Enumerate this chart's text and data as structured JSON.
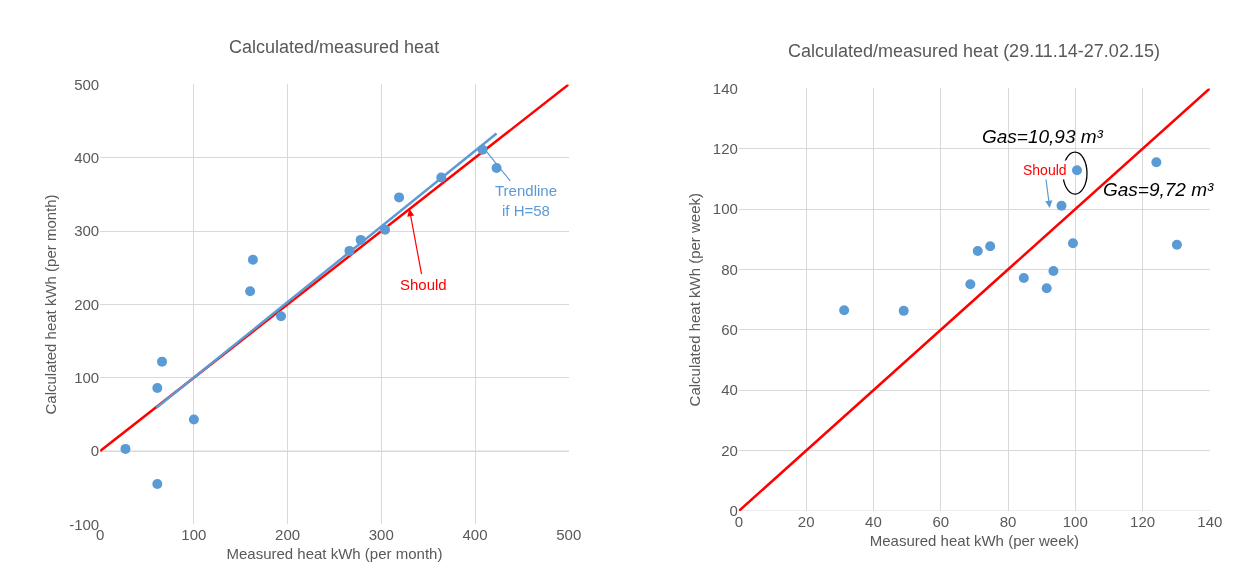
{
  "chart_data": [
    {
      "type": "scatter",
      "title": "Calculated/measured heat",
      "xlabel": "Measured heat kWh (per month)",
      "ylabel": "Calculated heat kWh (per month)",
      "xlim": [
        0,
        500
      ],
      "ylim": [
        -100,
        500
      ],
      "xticks": [
        0,
        100,
        200,
        300,
        400,
        500
      ],
      "yticks": [
        -100,
        0,
        100,
        200,
        300,
        400,
        500
      ],
      "grid": true,
      "marker": "circle",
      "series": [
        {
          "color": "#5b9bd5",
          "x": [
            27,
            61,
            61,
            66,
            100,
            160,
            163,
            193,
            266,
            278,
            304,
            319,
            364,
            408,
            423
          ],
          "values": [
            3,
            -45,
            86,
            122,
            43,
            218,
            261,
            184,
            273,
            288,
            302,
            346,
            373,
            411,
            386
          ]
        },
        {
          "type": "line",
          "color": "#ff0000",
          "marker": "none",
          "x": [
            0,
            500
          ],
          "values": [
            0,
            500
          ]
        },
        {
          "type": "line",
          "color": "#5b9bd5",
          "marker": "none",
          "x": [
            60,
            423
          ],
          "values": [
            59,
            433
          ]
        }
      ],
      "annotations": [
        {
          "text": "Trendline\nif H=58",
          "x": 410,
          "y": 412
        },
        {
          "text": "Should",
          "x": 330,
          "y": 330
        }
      ]
    },
    {
      "type": "scatter",
      "title": "Calculated/measured heat (29.11.14-27.02.15)",
      "xlabel": "Measured heat kWh (per week)",
      "ylabel": "Calculated heat kWh (per week)",
      "xlim": [
        0,
        140
      ],
      "ylim": [
        0,
        140
      ],
      "xticks": [
        0,
        20,
        40,
        60,
        80,
        100,
        120,
        140
      ],
      "yticks": [
        0,
        20,
        40,
        60,
        80,
        100,
        120,
        140
      ],
      "grid": true,
      "marker": "circle",
      "series": [
        {
          "color": "#5b9bd5",
          "x": [
            31.3,
            49,
            68.8,
            71,
            74.7,
            84.7,
            91.5,
            93.5,
            95.9,
            99.3,
            100.5,
            124.1,
            130.2
          ],
          "values": [
            66.5,
            66.3,
            75.1,
            86.1,
            87.7,
            77.2,
            73.8,
            79.5,
            101.1,
            88.7,
            112.9,
            115.5,
            88.2
          ]
        },
        {
          "type": "line",
          "color": "#ff0000",
          "marker": "none",
          "x": [
            0,
            140
          ],
          "values": [
            0,
            140
          ]
        }
      ],
      "annotations": [
        {
          "text": "Gas=10,93 m³",
          "x": 100.5,
          "y": 112.9
        },
        "Should",
        "Gas=9,72 m³"
      ]
    }
  ]
}
